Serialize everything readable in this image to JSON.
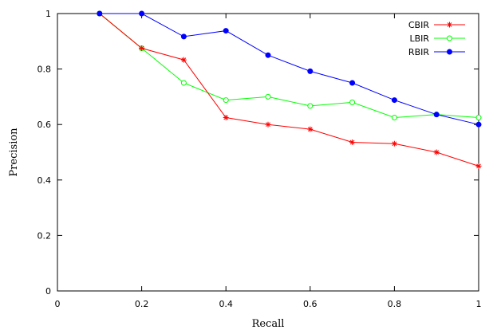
{
  "chart_data": {
    "type": "line",
    "title": "",
    "xlabel": "Recall",
    "ylabel": "Precision",
    "xlim": [
      0,
      1
    ],
    "ylim": [
      0,
      1
    ],
    "xticks": [
      "0",
      "0.2",
      "0.4",
      "0.6",
      "0.8",
      "1"
    ],
    "yticks": [
      "0",
      "0.2",
      "0.4",
      "0.6",
      "0.8",
      "1"
    ],
    "grid": false,
    "legend_position": "top-right",
    "series": [
      {
        "name": "CBIR",
        "color": "#ff0000",
        "marker": "asterisk",
        "x": [
          0.1,
          0.2,
          0.3,
          0.4,
          0.5,
          0.6,
          0.7,
          0.8,
          0.9,
          1.0
        ],
        "y": [
          1.0,
          0.875,
          0.833,
          0.625,
          0.6,
          0.583,
          0.536,
          0.531,
          0.5,
          0.45
        ]
      },
      {
        "name": "LBIR",
        "color": "#00ff00",
        "marker": "open-circle",
        "x": [
          0.1,
          0.2,
          0.3,
          0.4,
          0.5,
          0.6,
          0.7,
          0.8,
          0.9,
          1.0
        ],
        "y": [
          1.0,
          0.875,
          0.75,
          0.688,
          0.7,
          0.667,
          0.68,
          0.625,
          0.636,
          0.625
        ]
      },
      {
        "name": "RBIR",
        "color": "#0000ff",
        "marker": "filled-circle",
        "x": [
          0.1,
          0.2,
          0.3,
          0.4,
          0.5,
          0.6,
          0.7,
          0.8,
          0.9,
          1.0
        ],
        "y": [
          1.0,
          1.0,
          0.917,
          0.938,
          0.85,
          0.792,
          0.75,
          0.688,
          0.636,
          0.6
        ]
      }
    ]
  }
}
